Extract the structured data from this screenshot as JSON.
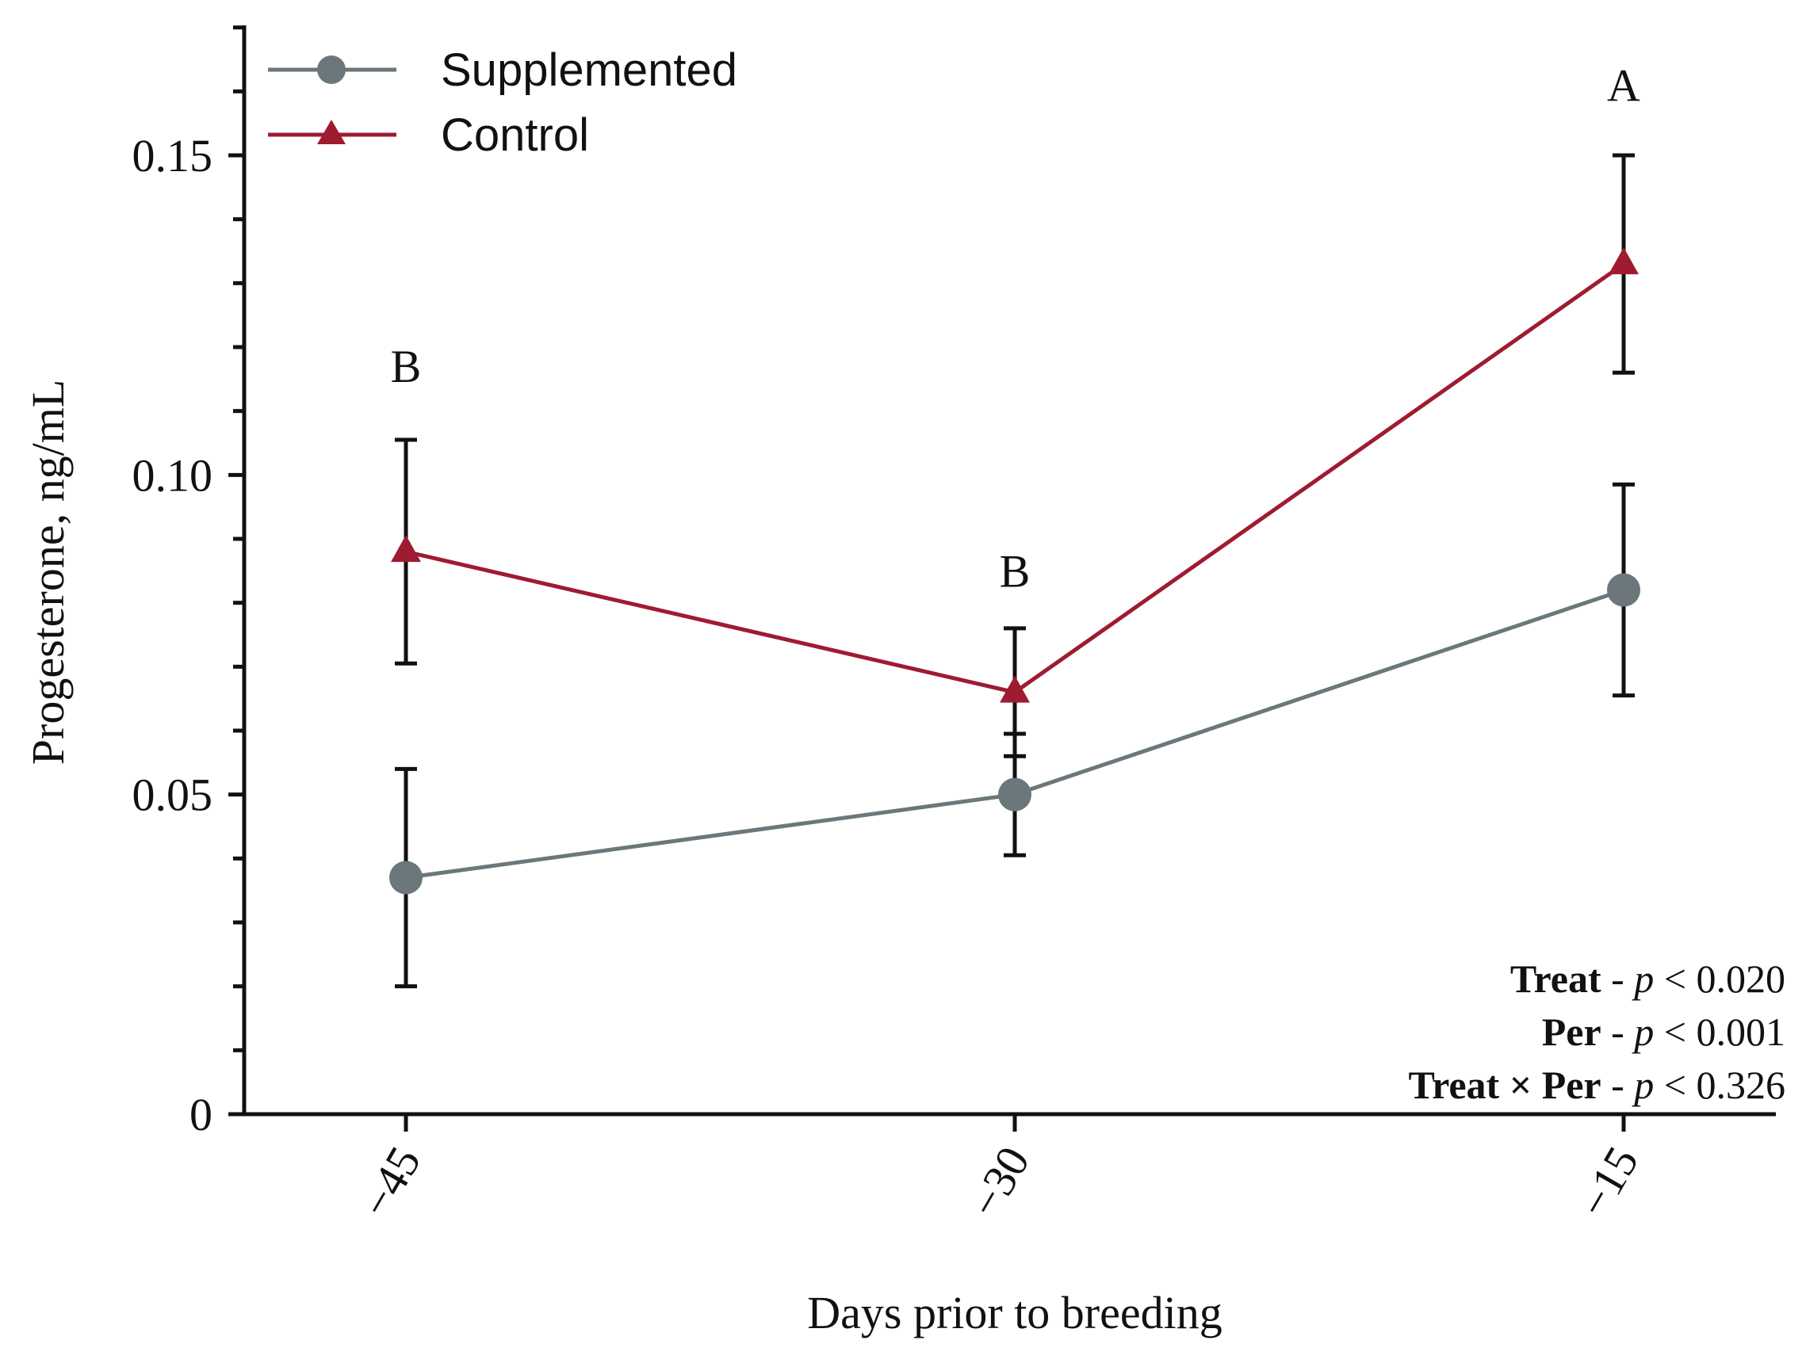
{
  "chart_data": {
    "type": "line",
    "title": "",
    "xlabel": "Days prior to breeding",
    "ylabel": "Progesterone, ng/mL",
    "categories": [
      "−45",
      "−30",
      "−15"
    ],
    "x": [
      -45,
      -30,
      -15
    ],
    "ylim": [
      0,
      0.17
    ],
    "y_ticks": [
      0,
      0.05,
      0.1,
      0.15
    ],
    "y_tick_labels": [
      "0",
      "0.05",
      "0.10",
      "0.15"
    ],
    "y_minor_step": 0.01,
    "grid": false,
    "legend_position": "top-left",
    "series": [
      {
        "name": "Supplemented",
        "marker": "circle",
        "color": "#6b777b",
        "values": [
          0.037,
          0.05,
          0.082
        ],
        "error": [
          0.017,
          0.0095,
          0.0165
        ]
      },
      {
        "name": "Control",
        "marker": "triangle",
        "color": "#9e1b32",
        "values": [
          0.088,
          0.066,
          0.133
        ],
        "error": [
          0.0175,
          0.01,
          0.017
        ]
      }
    ],
    "significance_letters": [
      {
        "category": "−45",
        "letter": "B",
        "y": 0.117
      },
      {
        "category": "−30",
        "letter": "B",
        "y": 0.085
      },
      {
        "category": "−15",
        "letter": "A",
        "y": 0.161
      }
    ],
    "stats": [
      {
        "term": "Treat",
        "sep": " - ",
        "p": "p",
        "cmp": " < 0.020"
      },
      {
        "term": "Per",
        "sep": " - ",
        "p": "p",
        "cmp": " < 0.001"
      },
      {
        "term": "Treat × Per",
        "sep": " - ",
        "p": "p",
        "cmp": " < 0.326"
      }
    ]
  }
}
